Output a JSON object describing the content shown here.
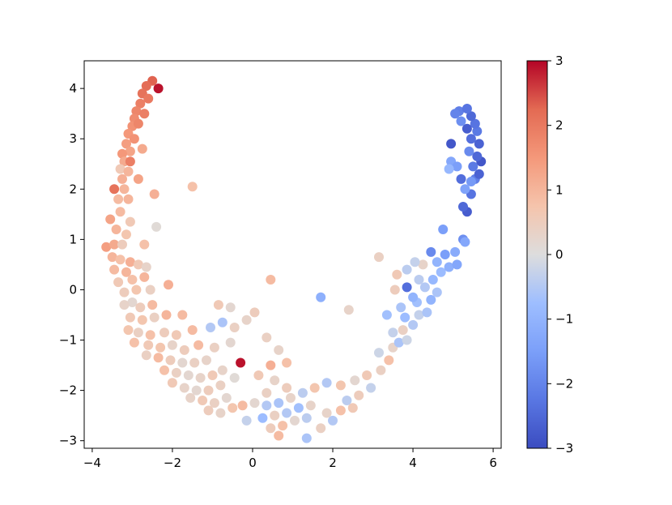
{
  "chart_data": {
    "type": "scatter",
    "title": "",
    "xlabel": "",
    "ylabel": "",
    "xlim": [
      -4.2,
      6.2
    ],
    "ylim": [
      -3.15,
      4.55
    ],
    "x_ticks": [
      -4,
      -2,
      0,
      2,
      4,
      6
    ],
    "x_tick_labels": [
      "−4",
      "−2",
      "0",
      "2",
      "4",
      "6"
    ],
    "y_ticks": [
      -3,
      -2,
      -1,
      0,
      1,
      2,
      3,
      4
    ],
    "y_tick_labels": [
      "−3",
      "−2",
      "−1",
      "0",
      "1",
      "2",
      "3",
      "4"
    ],
    "grid": false,
    "colorbar": {
      "colormap": "coolwarm",
      "min": -3,
      "max": 3,
      "ticks": [
        -3,
        -2,
        -1,
        0,
        1,
        2,
        3
      ],
      "tick_labels": [
        "−3",
        "−2",
        "−1",
        "0",
        "1",
        "2",
        "3"
      ],
      "colors": {
        "low": "#3b4cc0",
        "mid": "#dddddd",
        "high": "#b40426"
      }
    },
    "points": [
      [
        -2.35,
        4.0,
        2.9
      ],
      [
        -2.5,
        4.15,
        2.3
      ],
      [
        -2.65,
        4.05,
        2.2
      ],
      [
        -2.75,
        3.9,
        2.1
      ],
      [
        -2.6,
        3.8,
        2.0
      ],
      [
        -2.8,
        3.7,
        1.9
      ],
      [
        -2.9,
        3.55,
        1.8
      ],
      [
        -2.7,
        3.5,
        1.9
      ],
      [
        -2.95,
        3.4,
        1.7
      ],
      [
        -3.0,
        3.25,
        1.6
      ],
      [
        -2.85,
        3.3,
        1.8
      ],
      [
        -3.1,
        3.1,
        1.5
      ],
      [
        -2.95,
        3.0,
        1.6
      ],
      [
        -3.15,
        2.9,
        1.4
      ],
      [
        -3.05,
        2.75,
        1.3
      ],
      [
        -2.75,
        2.8,
        1.2
      ],
      [
        -3.25,
        2.7,
        1.5
      ],
      [
        -3.2,
        2.55,
        1.2
      ],
      [
        -3.05,
        2.55,
        1.9
      ],
      [
        -3.3,
        2.4,
        0.6
      ],
      [
        -3.1,
        2.35,
        1.0
      ],
      [
        -2.85,
        2.2,
        1.3
      ],
      [
        -3.25,
        2.2,
        1.1
      ],
      [
        -3.45,
        2.0,
        2.1
      ],
      [
        -3.2,
        2.0,
        1.0
      ],
      [
        -2.45,
        1.9,
        1.1
      ],
      [
        -1.5,
        2.05,
        0.8
      ],
      [
        -3.35,
        1.8,
        0.9
      ],
      [
        -3.1,
        1.8,
        1.0
      ],
      [
        -3.55,
        1.4,
        1.3
      ],
      [
        -3.3,
        1.55,
        0.9
      ],
      [
        -3.05,
        1.35,
        0.6
      ],
      [
        -2.4,
        1.25,
        0.1
      ],
      [
        -3.4,
        1.2,
        1.0
      ],
      [
        -3.15,
        1.1,
        0.7
      ],
      [
        -3.65,
        0.85,
        1.4
      ],
      [
        -3.45,
        0.9,
        1.2
      ],
      [
        -3.25,
        0.9,
        0.5
      ],
      [
        -2.7,
        0.9,
        0.8
      ],
      [
        -3.5,
        0.65,
        1.0
      ],
      [
        -3.3,
        0.6,
        0.8
      ],
      [
        -3.05,
        0.55,
        1.1
      ],
      [
        -2.85,
        0.5,
        0.6
      ],
      [
        -3.45,
        0.4,
        0.9
      ],
      [
        -3.15,
        0.35,
        1.0
      ],
      [
        -2.65,
        0.45,
        0.3
      ],
      [
        -3.35,
        0.15,
        0.6
      ],
      [
        -3.0,
        0.2,
        0.8
      ],
      [
        -2.7,
        0.25,
        1.0
      ],
      [
        -2.1,
        0.1,
        1.1
      ],
      [
        -3.2,
        -0.05,
        0.5
      ],
      [
        -2.9,
        0.0,
        0.7
      ],
      [
        -2.55,
        0.0,
        0.4
      ],
      [
        -3.0,
        -0.25,
        0.2
      ],
      [
        -3.2,
        -0.3,
        0.3
      ],
      [
        -2.8,
        -0.35,
        0.5
      ],
      [
        -2.5,
        -0.3,
        0.9
      ],
      [
        -3.05,
        -0.55,
        0.6
      ],
      [
        -2.75,
        -0.6,
        0.7
      ],
      [
        -2.45,
        -0.55,
        0.4
      ],
      [
        -2.15,
        -0.5,
        1.0
      ],
      [
        -1.75,
        -0.5,
        0.9
      ],
      [
        -3.1,
        -0.8,
        0.7
      ],
      [
        -2.85,
        -0.85,
        0.4
      ],
      [
        -2.55,
        -0.9,
        0.8
      ],
      [
        -2.2,
        -0.85,
        0.5
      ],
      [
        -1.9,
        -0.9,
        0.6
      ],
      [
        -1.5,
        -0.8,
        0.9
      ],
      [
        -2.95,
        -1.05,
        0.8
      ],
      [
        -2.6,
        -1.1,
        0.6
      ],
      [
        -2.3,
        -1.15,
        0.7
      ],
      [
        -2.0,
        -1.1,
        0.3
      ],
      [
        -1.7,
        -1.2,
        0.5
      ],
      [
        -1.35,
        -1.1,
        0.9
      ],
      [
        -2.65,
        -1.3,
        0.4
      ],
      [
        -2.35,
        -1.35,
        0.9
      ],
      [
        -2.05,
        -1.4,
        0.5
      ],
      [
        -1.75,
        -1.45,
        0.2
      ],
      [
        -1.45,
        -1.45,
        0.4
      ],
      [
        -1.15,
        -1.4,
        0.3
      ],
      [
        -2.2,
        -1.6,
        0.8
      ],
      [
        -1.9,
        -1.65,
        0.4
      ],
      [
        -1.6,
        -1.7,
        0.2
      ],
      [
        -1.3,
        -1.75,
        0.3
      ],
      [
        -1.0,
        -1.7,
        0.6
      ],
      [
        -2.0,
        -1.85,
        0.6
      ],
      [
        -1.7,
        -1.95,
        0.3
      ],
      [
        -1.4,
        -2.0,
        0.2
      ],
      [
        -1.1,
        -2.0,
        0.5
      ],
      [
        -0.8,
        -1.9,
        0.4
      ],
      [
        -1.55,
        -2.15,
        0.3
      ],
      [
        -1.25,
        -2.2,
        0.6
      ],
      [
        -0.95,
        -2.25,
        0.4
      ],
      [
        -0.65,
        -2.15,
        0.2
      ],
      [
        -1.1,
        -2.4,
        0.5
      ],
      [
        -0.8,
        -2.45,
        0.3
      ],
      [
        -0.5,
        -2.35,
        0.7
      ],
      [
        -0.25,
        -2.3,
        0.9
      ],
      [
        -0.75,
        -1.6,
        0.3
      ],
      [
        -0.45,
        -1.75,
        0.1
      ],
      [
        -0.3,
        -1.45,
        2.9
      ],
      [
        -0.95,
        -1.15,
        0.4
      ],
      [
        -0.55,
        -1.05,
        0.2
      ],
      [
        -1.05,
        -0.75,
        -0.5
      ],
      [
        -0.75,
        -0.65,
        -0.6
      ],
      [
        -0.45,
        -0.75,
        0.4
      ],
      [
        -0.15,
        -0.6,
        0.3
      ],
      [
        0.05,
        -0.45,
        0.5
      ],
      [
        -0.85,
        -0.3,
        0.6
      ],
      [
        -0.55,
        -0.35,
        0.2
      ],
      [
        0.45,
        0.2,
        0.9
      ],
      [
        0.35,
        -0.95,
        0.4
      ],
      [
        0.65,
        -1.2,
        0.3
      ],
      [
        0.85,
        -1.45,
        0.8
      ],
      [
        0.45,
        -1.5,
        1.1
      ],
      [
        0.15,
        -1.7,
        0.6
      ],
      [
        0.55,
        -1.8,
        0.3
      ],
      [
        0.85,
        -1.95,
        0.5
      ],
      [
        0.35,
        -2.05,
        0.4
      ],
      [
        0.05,
        -2.25,
        0.2
      ],
      [
        0.35,
        -2.3,
        -0.5
      ],
      [
        0.65,
        -2.25,
        -0.6
      ],
      [
        0.95,
        -2.15,
        0.3
      ],
      [
        1.25,
        -2.05,
        -0.4
      ],
      [
        1.55,
        -1.95,
        0.7
      ],
      [
        0.25,
        -2.55,
        -0.8
      ],
      [
        0.55,
        -2.5,
        0.4
      ],
      [
        0.85,
        -2.45,
        -0.5
      ],
      [
        1.15,
        -2.35,
        -0.7
      ],
      [
        1.45,
        -2.3,
        0.3
      ],
      [
        -0.15,
        -2.6,
        -0.3
      ],
      [
        0.45,
        -2.75,
        0.5
      ],
      [
        0.75,
        -2.7,
        0.8
      ],
      [
        1.05,
        -2.6,
        0.2
      ],
      [
        1.35,
        -2.55,
        -0.4
      ],
      [
        0.65,
        -2.9,
        0.9
      ],
      [
        1.35,
        -2.95,
        -0.6
      ],
      [
        1.7,
        -2.75,
        0.4
      ],
      [
        2.0,
        -2.6,
        -0.5
      ],
      [
        1.85,
        -2.45,
        0.3
      ],
      [
        2.2,
        -2.4,
        0.8
      ],
      [
        2.5,
        -2.35,
        0.6
      ],
      [
        2.35,
        -2.2,
        -0.4
      ],
      [
        2.65,
        -2.1,
        0.5
      ],
      [
        2.95,
        -1.95,
        -0.3
      ],
      [
        2.2,
        -1.9,
        0.7
      ],
      [
        1.85,
        -1.85,
        -0.5
      ],
      [
        2.55,
        -1.8,
        0.2
      ],
      [
        2.85,
        -1.7,
        0.6
      ],
      [
        3.2,
        -1.6,
        0.4
      ],
      [
        3.4,
        -1.4,
        0.8
      ],
      [
        3.15,
        -1.25,
        -0.2
      ],
      [
        3.5,
        -1.15,
        0.3
      ],
      [
        3.65,
        -1.05,
        -0.6
      ],
      [
        3.85,
        -1.0,
        -0.2
      ],
      [
        3.5,
        -0.85,
        -0.3
      ],
      [
        3.75,
        -0.8,
        0.4
      ],
      [
        4.0,
        -0.7,
        -0.5
      ],
      [
        3.8,
        -0.55,
        -0.8
      ],
      [
        4.15,
        -0.5,
        -0.3
      ],
      [
        4.35,
        -0.45,
        -0.6
      ],
      [
        4.1,
        -0.25,
        -0.7
      ],
      [
        4.45,
        -0.2,
        -1.0
      ],
      [
        4.6,
        -0.05,
        -0.6
      ],
      [
        4.3,
        0.05,
        -0.5
      ],
      [
        3.85,
        0.05,
        -2.4
      ],
      [
        4.15,
        0.2,
        -0.4
      ],
      [
        4.5,
        0.2,
        -0.9
      ],
      [
        4.7,
        0.35,
        -0.8
      ],
      [
        4.9,
        0.45,
        -1.1
      ],
      [
        4.25,
        0.5,
        0.3
      ],
      [
        4.6,
        0.55,
        -1.0
      ],
      [
        4.8,
        0.7,
        -1.5
      ],
      [
        5.05,
        0.75,
        -1.2
      ],
      [
        4.45,
        0.75,
        -1.9
      ],
      [
        5.25,
        1.0,
        -1.8
      ],
      [
        5.3,
        0.95,
        -1.3
      ],
      [
        4.75,
        1.2,
        -1.5
      ],
      [
        5.1,
        0.5,
        -1.3
      ],
      [
        3.85,
        0.4,
        -0.4
      ],
      [
        3.6,
        0.3,
        0.6
      ],
      [
        4.05,
        0.55,
        -0.3
      ],
      [
        4.0,
        -0.15,
        -1.0
      ],
      [
        3.55,
        0.0,
        0.5
      ],
      [
        3.15,
        0.65,
        0.4
      ],
      [
        3.35,
        -0.5,
        -0.7
      ],
      [
        3.7,
        -0.35,
        -0.6
      ],
      [
        1.7,
        -0.15,
        -1.1
      ],
      [
        2.4,
        -0.4,
        0.3
      ],
      [
        5.35,
        1.55,
        -2.7
      ],
      [
        5.45,
        1.9,
        -2.3
      ],
      [
        5.25,
        1.65,
        -2.5
      ],
      [
        5.55,
        2.2,
        -2.1
      ],
      [
        5.3,
        2.0,
        -1.4
      ],
      [
        5.65,
        2.3,
        -2.6
      ],
      [
        5.7,
        2.55,
        -2.8
      ],
      [
        5.5,
        2.45,
        -2.2
      ],
      [
        5.6,
        2.65,
        -2.5
      ],
      [
        5.4,
        2.75,
        -1.9
      ],
      [
        5.65,
        2.9,
        -2.6
      ],
      [
        5.45,
        3.0,
        -2.4
      ],
      [
        5.6,
        3.15,
        -2.2
      ],
      [
        5.35,
        3.2,
        -2.7
      ],
      [
        5.55,
        3.3,
        -2.3
      ],
      [
        5.2,
        3.35,
        -1.8
      ],
      [
        5.45,
        3.45,
        -2.5
      ],
      [
        5.15,
        3.55,
        -2.1
      ],
      [
        5.35,
        3.6,
        -2.3
      ],
      [
        5.05,
        3.5,
        -2.0
      ],
      [
        4.95,
        2.9,
        -2.8
      ],
      [
        4.95,
        2.55,
        -1.3
      ],
      [
        5.1,
        2.45,
        -1.5
      ],
      [
        4.9,
        2.4,
        -0.9
      ],
      [
        5.2,
        2.2,
        -2.4
      ],
      [
        5.45,
        2.15,
        -1.6
      ]
    ]
  }
}
